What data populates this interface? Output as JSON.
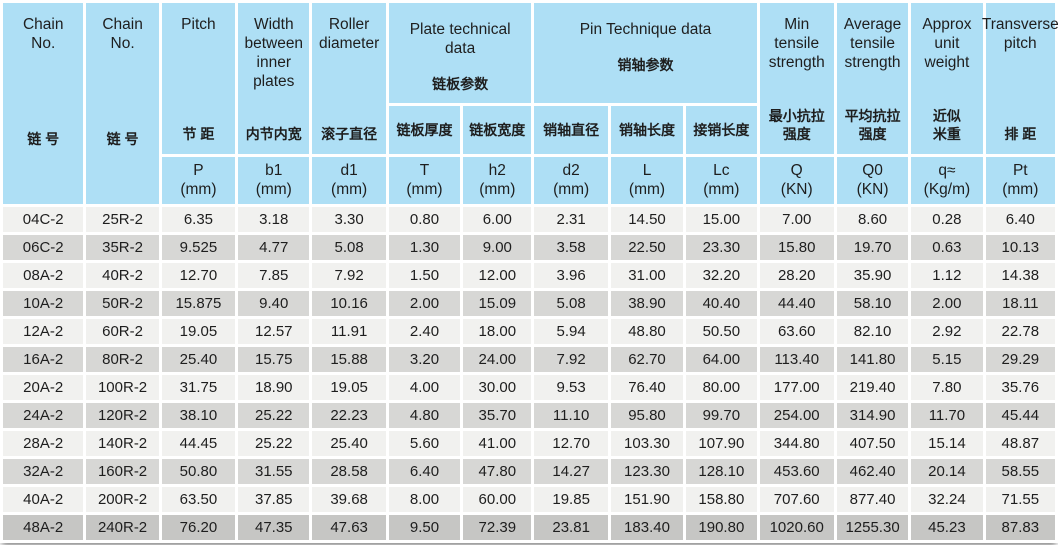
{
  "colors": {
    "header_blue": "#aedff5",
    "row_light": "#f1f1ef",
    "row_dark": "#d7d7d5",
    "row_last": "#c6c6c4",
    "gap_white": "#ffffff",
    "text": "#1e1e1e"
  },
  "chart_data": {
    "type": "table",
    "header": {
      "chain_no_1": {
        "en": "Chain\nNo.",
        "zh": "链 号"
      },
      "chain_no_2": {
        "en": "Chain\nNo.",
        "zh": "链 号"
      },
      "pitch": {
        "en": "Pitch",
        "zh": "节 距",
        "unit": "P\n(mm)"
      },
      "width_between_inner_plates": {
        "en": "Width\nbetween\ninner\nplates",
        "zh": "内节内宽",
        "unit": "b1\n(mm)"
      },
      "roller_diameter": {
        "en": "Roller\ndiameter",
        "zh": "滚子直径",
        "unit": "d1\n(mm)"
      },
      "plate_group": {
        "en": "Plate technical\ndata",
        "zh": "链板参数"
      },
      "plate_thickness": {
        "zh": "链板厚度",
        "unit": "T\n(mm)"
      },
      "plate_width": {
        "zh": "链板宽度",
        "unit": "h2\n(mm)"
      },
      "pin_group": {
        "en": "Pin Technique data",
        "zh": "销轴参数"
      },
      "pin_diameter": {
        "zh": "销轴直径",
        "unit": "d2\n(mm)"
      },
      "pin_length": {
        "zh": "销轴长度",
        "unit": "L\n(mm)"
      },
      "joint_pin_length": {
        "zh": "接销长度",
        "unit": "Lc\n(mm)"
      },
      "min_tensile_strength": {
        "en": "Min\ntensile\nstrength",
        "zh": "最小抗拉\n强度",
        "unit": "Q\n(KN)"
      },
      "avg_tensile_strength": {
        "en": "Average\ntensile\nstrength",
        "zh": "平均抗拉\n强度",
        "unit": "Q0\n(KN)"
      },
      "approx_unit_weight": {
        "en": "Approx\nunit\nweight",
        "zh": "近似\n米重",
        "unit": "q≈\n(Kg/m)"
      },
      "transverse_pitch": {
        "en": "Transverse\npitch",
        "zh": "排 距",
        "unit": "Pt\n(mm)"
      }
    },
    "rows": [
      [
        "04C-2",
        "25R-2",
        "6.35",
        "3.18",
        "3.30",
        "0.80",
        "6.00",
        "2.31",
        "14.50",
        "15.00",
        "7.00",
        "8.60",
        "0.28",
        "6.40"
      ],
      [
        "06C-2",
        "35R-2",
        "9.525",
        "4.77",
        "5.08",
        "1.30",
        "9.00",
        "3.58",
        "22.50",
        "23.30",
        "15.80",
        "19.70",
        "0.63",
        "10.13"
      ],
      [
        "08A-2",
        "40R-2",
        "12.70",
        "7.85",
        "7.92",
        "1.50",
        "12.00",
        "3.96",
        "31.00",
        "32.20",
        "28.20",
        "35.90",
        "1.12",
        "14.38"
      ],
      [
        "10A-2",
        "50R-2",
        "15.875",
        "9.40",
        "10.16",
        "2.00",
        "15.09",
        "5.08",
        "38.90",
        "40.40",
        "44.40",
        "58.10",
        "2.00",
        "18.11"
      ],
      [
        "12A-2",
        "60R-2",
        "19.05",
        "12.57",
        "11.91",
        "2.40",
        "18.00",
        "5.94",
        "48.80",
        "50.50",
        "63.60",
        "82.10",
        "2.92",
        "22.78"
      ],
      [
        "16A-2",
        "80R-2",
        "25.40",
        "15.75",
        "15.88",
        "3.20",
        "24.00",
        "7.92",
        "62.70",
        "64.00",
        "113.40",
        "141.80",
        "5.15",
        "29.29"
      ],
      [
        "20A-2",
        "100R-2",
        "31.75",
        "18.90",
        "19.05",
        "4.00",
        "30.00",
        "9.53",
        "76.40",
        "80.00",
        "177.00",
        "219.40",
        "7.80",
        "35.76"
      ],
      [
        "24A-2",
        "120R-2",
        "38.10",
        "25.22",
        "22.23",
        "4.80",
        "35.70",
        "11.10",
        "95.80",
        "99.70",
        "254.00",
        "314.90",
        "11.70",
        "45.44"
      ],
      [
        "28A-2",
        "140R-2",
        "44.45",
        "25.22",
        "25.40",
        "5.60",
        "41.00",
        "12.70",
        "103.30",
        "107.90",
        "344.80",
        "407.50",
        "15.14",
        "48.87"
      ],
      [
        "32A-2",
        "160R-2",
        "50.80",
        "31.55",
        "28.58",
        "6.40",
        "47.80",
        "14.27",
        "123.30",
        "128.10",
        "453.60",
        "462.40",
        "20.14",
        "58.55"
      ],
      [
        "40A-2",
        "200R-2",
        "63.50",
        "37.85",
        "39.68",
        "8.00",
        "60.00",
        "19.85",
        "151.90",
        "158.80",
        "707.60",
        "877.40",
        "32.24",
        "71.55"
      ],
      [
        "48A-2",
        "240R-2",
        "76.20",
        "47.35",
        "47.63",
        "9.50",
        "72.39",
        "23.81",
        "183.40",
        "190.80",
        "1020.60",
        "1255.30",
        "45.23",
        "87.83"
      ]
    ]
  }
}
